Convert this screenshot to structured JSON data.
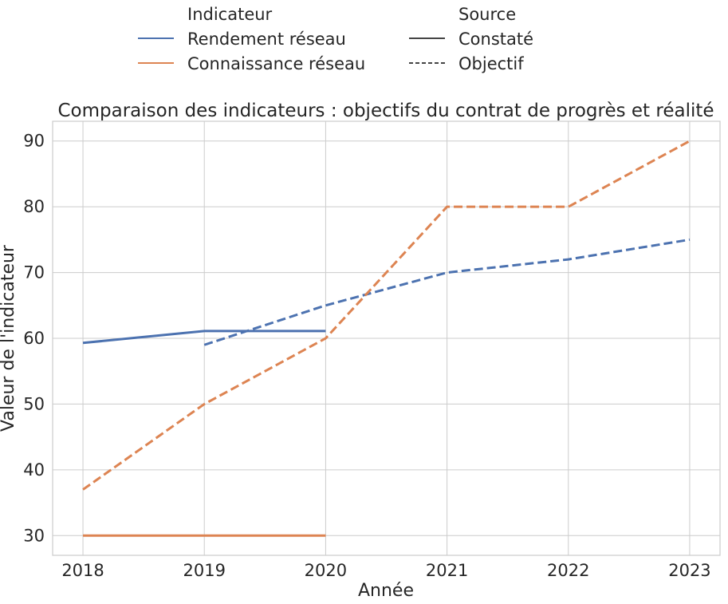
{
  "legend": {
    "indicator_title": "Indicateur",
    "source_title": "Source",
    "indicator_items": [
      {
        "label": "Rendement réseau",
        "color": "#4c72b0"
      },
      {
        "label": "Connaissance réseau",
        "color": "#dd8452"
      }
    ],
    "source_items": [
      {
        "label": "Constaté",
        "style": "solid"
      },
      {
        "label": "Objectif",
        "style": "dashed"
      }
    ]
  },
  "chart_data": {
    "type": "line",
    "title": "Comparaison des indicateurs : objectifs du contrat de progrès et réalité",
    "xlabel": "Année",
    "ylabel": "Valeur de l'indicateur",
    "x_ticks": [
      2018,
      2019,
      2020,
      2021,
      2022,
      2023
    ],
    "y_ticks": [
      30,
      40,
      50,
      60,
      70,
      80,
      90
    ],
    "xlim": [
      2017.75,
      2023.25
    ],
    "ylim": [
      27,
      93
    ],
    "grid": true,
    "legend_position": "top, outside plot area",
    "series": [
      {
        "indicator": "Rendement réseau",
        "source": "Constaté",
        "color": "#4c72b0",
        "style": "solid",
        "points": [
          [
            2018,
            59.3
          ],
          [
            2019,
            61.1
          ],
          [
            2020,
            61.1
          ]
        ]
      },
      {
        "indicator": "Rendement réseau",
        "source": "Objectif",
        "color": "#4c72b0",
        "style": "dashed",
        "points": [
          [
            2019,
            59
          ],
          [
            2020,
            65
          ],
          [
            2021,
            70
          ],
          [
            2022,
            72
          ],
          [
            2023,
            75
          ]
        ]
      },
      {
        "indicator": "Connaissance réseau",
        "source": "Constaté",
        "color": "#dd8452",
        "style": "solid",
        "points": [
          [
            2018,
            30
          ],
          [
            2019,
            30
          ],
          [
            2020,
            30
          ]
        ]
      },
      {
        "indicator": "Connaissance réseau",
        "source": "Objectif",
        "color": "#dd8452",
        "style": "dashed",
        "points": [
          [
            2018,
            37
          ],
          [
            2019,
            50
          ],
          [
            2020,
            60
          ],
          [
            2021,
            80
          ],
          [
            2022,
            80
          ],
          [
            2023,
            90
          ]
        ]
      }
    ]
  }
}
